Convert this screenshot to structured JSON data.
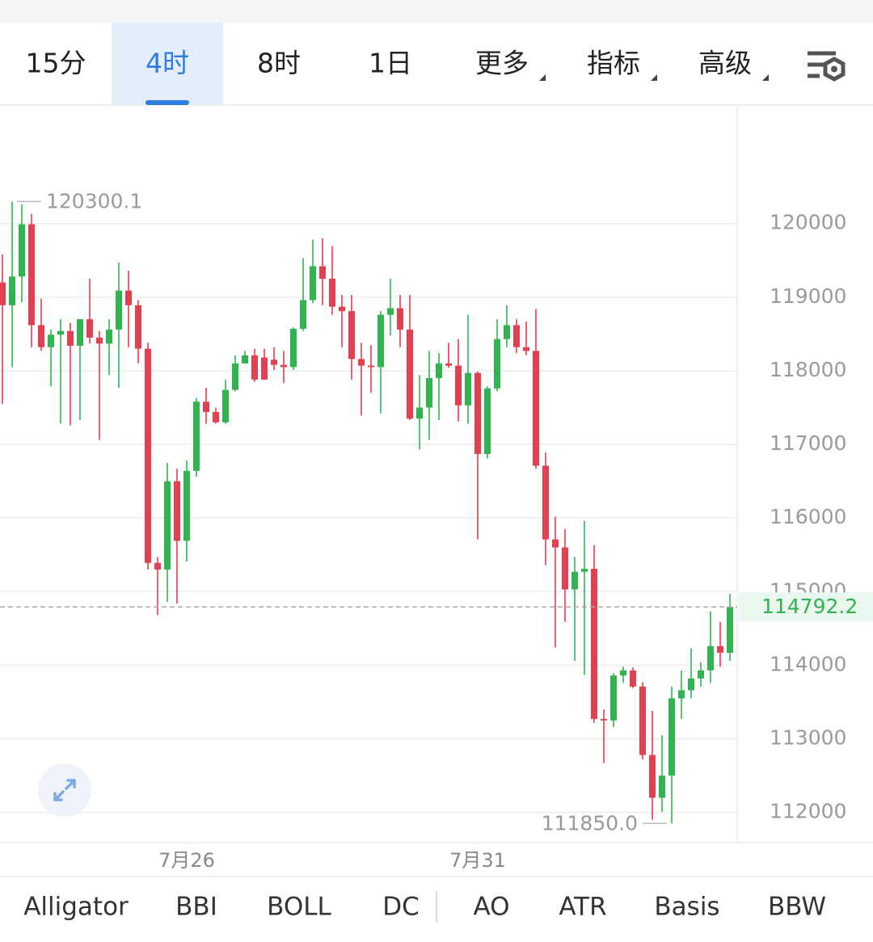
{
  "tabs": [
    "15分",
    "4时",
    "8时",
    "1日",
    "更多",
    "指标",
    "高级"
  ],
  "active_tab": 1,
  "indicators": [
    "Alligator",
    "BBI",
    "BOLL",
    "DC",
    "AO",
    "ATR",
    "Basis",
    "BBW"
  ],
  "chart_data": {
    "type": "candlestick",
    "categories": [
      null,
      null,
      null,
      null,
      null,
      null,
      null,
      null,
      null,
      null,
      null,
      null,
      null,
      null,
      null,
      null,
      null,
      null,
      null,
      "7月26",
      null,
      null,
      null,
      null,
      null,
      null,
      null,
      null,
      null,
      null,
      null,
      null,
      null,
      null,
      null,
      null,
      null,
      null,
      null,
      null,
      null,
      null,
      null,
      null,
      null,
      null,
      null,
      null,
      null,
      "7月31",
      null,
      null,
      null,
      null,
      null,
      null,
      null,
      null,
      null,
      null,
      null,
      null,
      null,
      null,
      null,
      null,
      null,
      null,
      null,
      null,
      null,
      null,
      null,
      null,
      null,
      null
    ],
    "open": [
      119200,
      118890,
      119280,
      119990,
      118620,
      118320,
      118490,
      118540,
      118340,
      118700,
      118450,
      118370,
      118560,
      119090,
      118890,
      118300,
      115390,
      115300,
      116500,
      115690,
      116640,
      117580,
      117440,
      117300,
      117740,
      118100,
      118210,
      118180,
      118150,
      118080,
      118050,
      118570,
      118960,
      119420,
      119250,
      118870,
      118810,
      118160,
      118070,
      118050,
      118760,
      118850,
      118560,
      117350,
      117500,
      117900,
      118100,
      118070,
      117530,
      117970,
      116870,
      117760,
      118430,
      118620,
      118320,
      118270,
      116710,
      115710,
      115600,
      115030,
      115270,
      115310,
      113270,
      113250,
      113860,
      113930,
      113710,
      112780,
      112200,
      112500,
      113550,
      113660,
      113820,
      113930,
      114260,
      114170
    ],
    "high": [
      119580,
      120300.1,
      120260,
      120130,
      118980,
      118560,
      118700,
      118650,
      118700,
      119250,
      118540,
      118700,
      119470,
      119360,
      118960,
      118380,
      115470,
      116750,
      116670,
      116780,
      117630,
      117770,
      117500,
      117880,
      118210,
      118270,
      118300,
      118300,
      118320,
      118270,
      118590,
      119530,
      119780,
      119800,
      119690,
      119030,
      119030,
      118380,
      118350,
      118810,
      119250,
      119030,
      119030,
      117940,
      118270,
      118240,
      118380,
      118430,
      118760,
      117990,
      117790,
      118700,
      118890,
      118700,
      118670,
      118840,
      116890,
      116020,
      115850,
      115470,
      115960,
      115630,
      113400,
      113890,
      113980,
      113970,
      113770,
      113380,
      113050,
      113710,
      113930,
      114230,
      114040,
      114730,
      114590,
      114970
    ],
    "low": [
      117550,
      118050,
      118930,
      118320,
      118270,
      117790,
      117280,
      117260,
      117330,
      118370,
      117060,
      117940,
      117770,
      118320,
      118100,
      115300,
      114680,
      114860,
      114840,
      115410,
      116560,
      117280,
      117280,
      117280,
      117720,
      118100,
      117850,
      117880,
      118010,
      117830,
      118010,
      118540,
      118920,
      118890,
      118760,
      118320,
      117880,
      117390,
      117700,
      117420,
      118480,
      118320,
      117330,
      116930,
      117060,
      117330,
      118040,
      117310,
      117280,
      115710,
      116810,
      117720,
      118320,
      118240,
      118210,
      116670,
      115360,
      114240,
      114590,
      114060,
      113870,
      113220,
      112670,
      113160,
      113760,
      113690,
      112720,
      111900,
      112010,
      111850,
      113270,
      113550,
      113710,
      113760,
      113980,
      114060
    ],
    "close": [
      118890,
      119280,
      119990,
      118620,
      118320,
      118490,
      118540,
      118340,
      118700,
      118450,
      118370,
      118560,
      119090,
      118890,
      118300,
      115390,
      115300,
      116500,
      115690,
      116640,
      117580,
      117440,
      117300,
      117740,
      118100,
      118210,
      117880,
      117880,
      118080,
      118050,
      118570,
      118960,
      119420,
      119250,
      118870,
      118810,
      118160,
      118070,
      118050,
      118760,
      118850,
      118560,
      117350,
      117500,
      117900,
      118100,
      118070,
      117530,
      117970,
      116870,
      117760,
      118430,
      118620,
      118320,
      118270,
      116710,
      115710,
      115600,
      115030,
      115270,
      115310,
      113270,
      113250,
      113860,
      113930,
      113710,
      112780,
      112200,
      112500,
      113550,
      113660,
      113820,
      113930,
      114260,
      114170,
      114792.2
    ],
    "up_color": "#2fb44e",
    "down_color": "#e0404f",
    "ylim": [
      111590,
      121610
    ],
    "yticks": [
      112000,
      113000,
      114000,
      115000,
      116000,
      117000,
      118000,
      119000,
      120000
    ],
    "grid": true,
    "high_label": {
      "value": 120300.1,
      "label": "120300.1"
    },
    "low_label": {
      "value": 111850,
      "label": "111850.0"
    },
    "last_price": 114792.2
  }
}
